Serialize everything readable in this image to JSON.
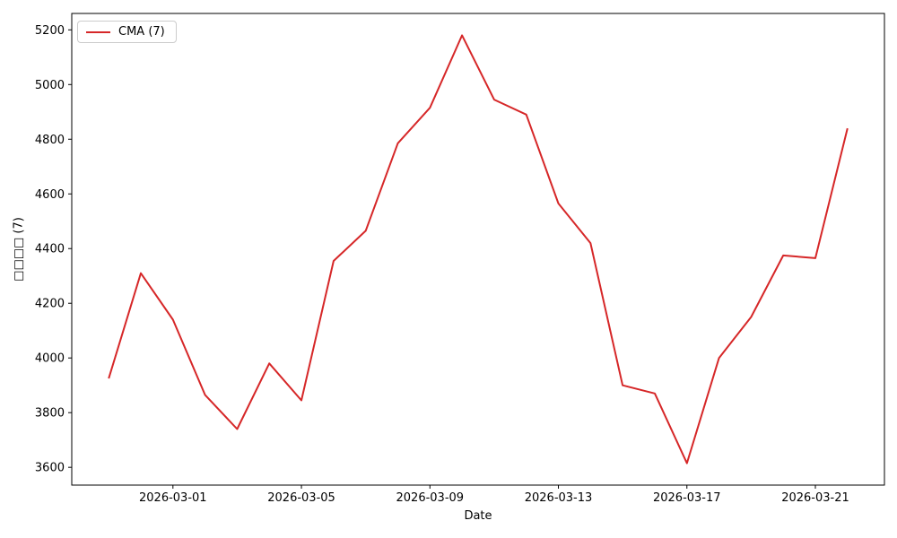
{
  "chart_data": {
    "type": "line",
    "title": "",
    "xlabel": "Date",
    "ylabel": "□□□□ (7)",
    "grid": false,
    "legend": {
      "position": "upper left",
      "entries": [
        {
          "label": "CMA (7)",
          "color": "#d62728"
        }
      ]
    },
    "x": [
      "2026-02-27",
      "2026-02-28",
      "2026-03-01",
      "2026-03-02",
      "2026-03-03",
      "2026-03-04",
      "2026-03-05",
      "2026-03-06",
      "2026-03-07",
      "2026-03-08",
      "2026-03-09",
      "2026-03-10",
      "2026-03-11",
      "2026-03-12",
      "2026-03-13",
      "2026-03-14",
      "2026-03-15",
      "2026-03-16",
      "2026-03-17",
      "2026-03-18",
      "2026-03-19",
      "2026-03-20",
      "2026-03-21",
      "2026-03-22"
    ],
    "series": [
      {
        "name": "CMA (7)",
        "color": "#d62728",
        "values": [
          3925,
          4310,
          4140,
          3865,
          3740,
          3980,
          3845,
          4355,
          4465,
          4785,
          4915,
          5180,
          4945,
          4890,
          4565,
          4420,
          3900,
          3870,
          3615,
          4000,
          4150,
          4375,
          4365,
          4840
        ]
      }
    ],
    "y_ticks": [
      3600,
      3800,
      4000,
      4200,
      4400,
      4600,
      4800,
      5000,
      5200
    ],
    "x_tick_indices": [
      2,
      6,
      10,
      14,
      18,
      22
    ],
    "x_tick_labels": [
      "2026-03-01",
      "2026-03-05",
      "2026-03-09",
      "2026-03-13",
      "2026-03-17",
      "2026-03-21"
    ],
    "ylim": [
      3535,
      5260
    ],
    "x_margin_days": 1.15
  }
}
